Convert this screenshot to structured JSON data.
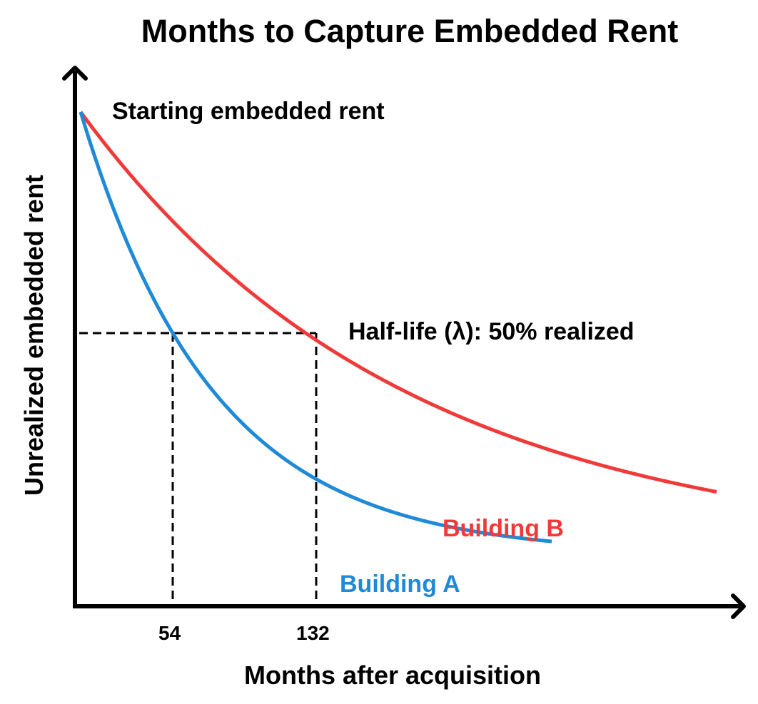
{
  "chart_data": {
    "type": "line",
    "title": "Months to Capture Embedded Rent",
    "xlabel": "Months after acquisition",
    "ylabel": "Unrealized embedded rent",
    "x_ticks": [
      "54",
      "132"
    ],
    "grid": false,
    "legend": "inline labels",
    "annotations": [
      {
        "text": "Starting embedded rent",
        "at": "curve start (x=0, y=100%)"
      },
      {
        "text": "Half-life (λ): 50% realized",
        "at": "y=50% level"
      }
    ],
    "series": [
      {
        "name": "Building A",
        "color": "#1f8ad6",
        "half_life_months": 54,
        "points": [
          [
            0,
            100
          ],
          [
            54,
            50
          ],
          [
            132,
            22
          ],
          [
            290,
            4
          ]
        ]
      },
      {
        "name": "Building B",
        "color": "#f03a3a",
        "half_life_months": 132,
        "points": [
          [
            0,
            100
          ],
          [
            54,
            75
          ],
          [
            132,
            50
          ],
          [
            350,
            4
          ]
        ]
      }
    ],
    "guides": {
      "half_level_percent": 50,
      "vertical_lines_at": [
        54,
        132
      ]
    },
    "ylim": [
      0,
      100
    ]
  },
  "labels": {
    "title": "Months to Capture Embedded Rent",
    "start": "Starting embedded rent",
    "half": "Half-life (λ): 50% realized",
    "building_a": "Building A",
    "building_b": "Building B",
    "tick_54": "54",
    "tick_132": "132",
    "xlabel": "Months after acquisition",
    "ylabel": "Unrealized embedded rent"
  },
  "colors": {
    "building_a": "#1f8ad6",
    "building_b": "#f03a3a",
    "axis": "#000000"
  }
}
